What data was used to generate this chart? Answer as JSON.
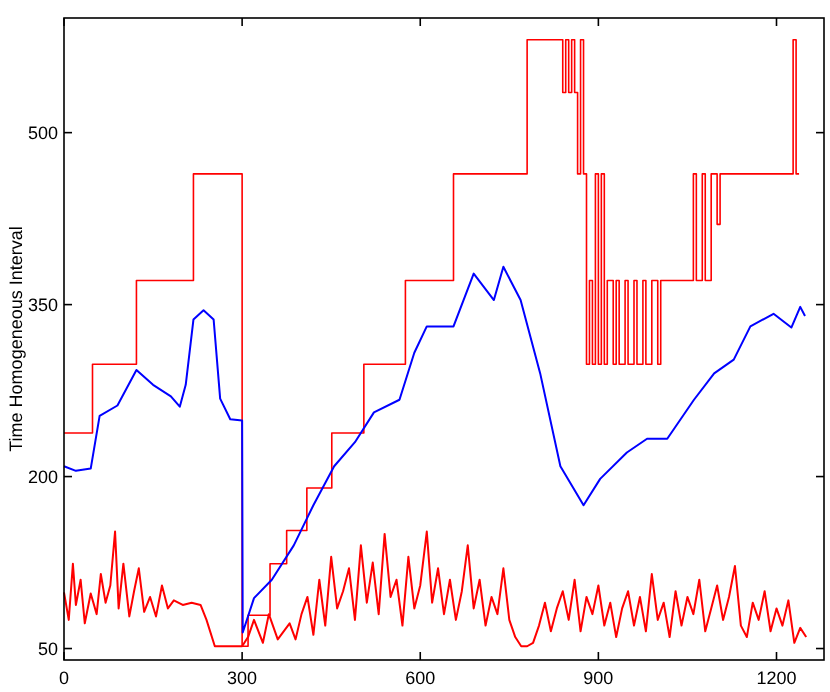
{
  "chart_data": {
    "type": "line",
    "ylabel": "Time Homogeneous Interval",
    "xlim": [
      0,
      1280
    ],
    "ylim": [
      40,
      600
    ],
    "xticks": [
      0,
      300,
      600,
      900,
      1200
    ],
    "yticks": [
      50,
      200,
      350,
      500
    ],
    "grid": false,
    "series": [
      {
        "type": "step",
        "color": "#ff0000",
        "x": [
          0,
          48,
          122,
          218,
          300,
          310,
          347,
          375,
          409,
          451,
          505,
          575,
          656,
          780,
          840,
          845,
          850,
          855,
          860,
          865,
          870,
          875,
          880,
          885,
          890,
          895,
          900,
          905,
          910,
          915,
          925,
          930,
          935,
          945,
          950,
          960,
          965,
          975,
          980,
          990,
          1000,
          1005,
          1060,
          1065,
          1075,
          1080,
          1090,
          1100,
          1105,
          1228,
          1233,
          1238
        ],
        "values": [
          238,
          298,
          371,
          464,
          52,
          79,
          124,
          153,
          190,
          238,
          298,
          371,
          464,
          581,
          535,
          581,
          535,
          581,
          535,
          464,
          581,
          464,
          298,
          371,
          298,
          464,
          298,
          464,
          298,
          371,
          298,
          371,
          298,
          371,
          298,
          371,
          298,
          371,
          298,
          371,
          298,
          371,
          464,
          371,
          464,
          371,
          464,
          420,
          464,
          581,
          464,
          464
        ]
      },
      {
        "color": "#0000ff",
        "x": [
          0,
          20,
          45,
          60,
          90,
          122,
          150,
          180,
          195,
          205,
          218,
          235,
          252,
          263,
          280,
          300,
          301,
          320,
          350,
          387,
          420,
          455,
          490,
          522,
          565,
          590,
          611,
          656,
          690,
          724,
          740,
          769,
          802,
          836,
          875,
          903,
          948,
          982,
          1016,
          1061,
          1095,
          1128,
          1156,
          1195,
          1225,
          1240,
          1248
        ],
        "values": [
          209,
          205,
          207,
          253,
          262,
          293,
          280,
          270,
          261,
          280,
          337,
          345,
          337,
          268,
          250,
          249,
          64,
          94,
          110,
          140,
          175,
          209,
          230,
          256,
          267,
          308,
          331,
          331,
          377,
          354,
          383,
          354,
          290,
          209,
          175,
          198,
          221,
          233,
          233,
          267,
          290,
          302,
          331,
          342,
          330,
          348,
          340
        ]
      },
      {
        "color": "#ff0000",
        "x": [
          0,
          8,
          15,
          20,
          28,
          35,
          45,
          55,
          62,
          70,
          78,
          86,
          92,
          100,
          110,
          118,
          126,
          135,
          145,
          155,
          165,
          175,
          185,
          200,
          215,
          230,
          240,
          254,
          300,
          310,
          320,
          335,
          345,
          360,
          370,
          380,
          390,
          400,
          410,
          420,
          430,
          440,
          450,
          460,
          470,
          480,
          490,
          500,
          510,
          520,
          530,
          540,
          550,
          560,
          570,
          580,
          590,
          600,
          611,
          620,
          630,
          640,
          650,
          660,
          670,
          680,
          690,
          700,
          710,
          720,
          730,
          740,
          750,
          760,
          770,
          780,
          790,
          800,
          810,
          820,
          830,
          840,
          850,
          860,
          870,
          880,
          890,
          900,
          910,
          920,
          930,
          940,
          950,
          960,
          970,
          980,
          990,
          1000,
          1010,
          1020,
          1030,
          1040,
          1050,
          1060,
          1070,
          1080,
          1090,
          1100,
          1110,
          1120,
          1130,
          1140,
          1150,
          1160,
          1170,
          1180,
          1190,
          1200,
          1210,
          1220,
          1230,
          1240,
          1250
        ],
        "values": [
          99,
          75,
          124,
          88,
          110,
          72,
          98,
          80,
          115,
          90,
          105,
          152,
          85,
          124,
          78,
          100,
          120,
          82,
          95,
          78,
          105,
          85,
          92,
          88,
          90,
          88,
          75,
          52,
          52,
          60,
          75,
          55,
          80,
          58,
          65,
          72,
          58,
          80,
          95,
          62,
          110,
          70,
          130,
          85,
          100,
          120,
          75,
          140,
          90,
          125,
          80,
          150,
          95,
          110,
          70,
          130,
          85,
          105,
          152,
          90,
          120,
          80,
          110,
          75,
          100,
          140,
          85,
          110,
          70,
          95,
          80,
          120,
          75,
          60,
          52,
          52,
          55,
          70,
          90,
          65,
          85,
          100,
          75,
          110,
          65,
          95,
          80,
          105,
          70,
          90,
          60,
          85,
          100,
          70,
          95,
          65,
          115,
          75,
          90,
          60,
          100,
          70,
          95,
          80,
          110,
          65,
          85,
          105,
          75,
          95,
          122,
          70,
          60,
          90,
          75,
          100,
          65,
          85,
          70,
          92,
          55,
          68,
          60
        ]
      }
    ]
  }
}
